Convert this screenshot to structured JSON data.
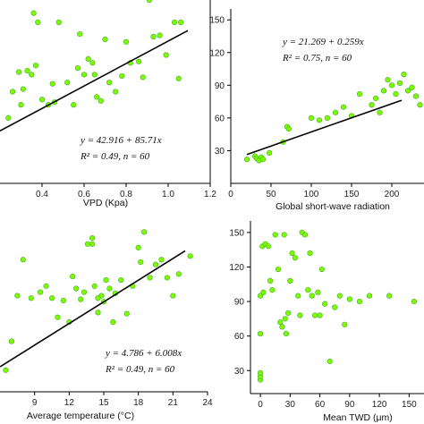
{
  "chart_data": [
    {
      "type": "scatter",
      "xlabel": "VPD (Kpa)",
      "ylabel": "",
      "xlim": [
        0.2,
        1.2
      ],
      "ylim": [
        20,
        160
      ],
      "xticks": [
        "0.4",
        "0.6",
        "0.8",
        "1.0",
        "1.2"
      ],
      "yticks": [],
      "fit": {
        "intercept": 42.916,
        "slope": 85.71
      },
      "equation": "y = 42.916 + 85.71x",
      "r2_text": "R² = 0.49, n = 60",
      "x": [
        0.24,
        0.26,
        0.29,
        0.31,
        0.33,
        0.35,
        0.36,
        0.37,
        0.38,
        0.4,
        0.43,
        0.46,
        0.48,
        0.52,
        0.55,
        0.57,
        0.58,
        0.6,
        0.62,
        0.64,
        0.66,
        0.68,
        0.7,
        0.72,
        0.75,
        0.78,
        0.8,
        0.82,
        0.86,
        0.88,
        0.91,
        0.93,
        0.96,
        0.99,
        1.03,
        1.05,
        1.06,
        0.3,
        0.45,
        0.65
      ],
      "y": [
        70,
        90,
        105,
        92,
        106,
        103,
        150,
        110,
        143,
        84,
        80,
        82,
        143,
        97,
        80,
        108,
        134,
        103,
        115,
        112,
        86,
        83,
        130,
        97,
        90,
        102,
        128,
        112,
        113,
        101,
        160,
        132,
        133,
        118,
        143,
        100,
        143,
        80,
        96,
        103
      ]
    },
    {
      "type": "scatter",
      "xlabel": "Global short-wave radiation",
      "ylabel": "",
      "xlim": [
        0,
        240
      ],
      "ylim": [
        0,
        160
      ],
      "xticks": [
        "0",
        "50",
        "100",
        "150",
        "200"
      ],
      "yticks": [
        "30",
        "60",
        "90",
        "120",
        "150"
      ],
      "fit": {
        "intercept": 21.269,
        "slope": 0.259
      },
      "equation": "y = 21.269 + 0.259x",
      "r2_text": "R² = 0.75, n = 60",
      "x": [
        20,
        30,
        32,
        35,
        38,
        40,
        48,
        65,
        70,
        72,
        100,
        110,
        120,
        130,
        140,
        150,
        160,
        175,
        180,
        190,
        195,
        200,
        205,
        210,
        215,
        220,
        225,
        230,
        235,
        185
      ],
      "y": [
        22,
        25,
        23,
        21,
        24,
        22,
        28,
        38,
        52,
        50,
        60,
        58,
        60,
        65,
        70,
        62,
        82,
        72,
        78,
        85,
        95,
        90,
        82,
        92,
        100,
        85,
        88,
        80,
        72,
        65
      ]
    },
    {
      "type": "scatter",
      "xlabel": "Average temperature (°C)",
      "ylabel": "",
      "xlim": [
        6,
        24
      ],
      "ylim": [
        20,
        160
      ],
      "xticks": [
        "9",
        "12",
        "15",
        "18",
        "21",
        "24"
      ],
      "yticks": [],
      "fit": {
        "intercept": 4.786,
        "slope": 6.008
      },
      "equation": "y = 4.786 + 6.008x",
      "r2_text": "R² = 0.49, n = 60",
      "x": [
        6.5,
        7.0,
        7.5,
        8.0,
        8.7,
        9.5,
        10.0,
        10.5,
        11.0,
        11.5,
        12.0,
        12.3,
        12.6,
        13.0,
        13.3,
        13.6,
        14.0,
        14.2,
        14.5,
        14.8,
        15.0,
        15.2,
        15.5,
        16.0,
        16.5,
        17.0,
        17.5,
        18.0,
        18.5,
        19.0,
        19.5,
        20.0,
        20.5,
        21.0,
        21.5,
        22.5,
        14.0,
        14.5,
        15.8,
        18.2
      ],
      "y": [
        38,
        62,
        100,
        130,
        98,
        103,
        108,
        98,
        82,
        96,
        78,
        116,
        106,
        97,
        103,
        143,
        143,
        108,
        86,
        100,
        95,
        113,
        106,
        102,
        113,
        85,
        108,
        140,
        153,
        115,
        126,
        130,
        115,
        100,
        118,
        133,
        148,
        98,
        78,
        128
      ]
    },
    {
      "type": "scatter",
      "xlabel": "Mean TWD (μm)",
      "ylabel": "",
      "xlim": [
        -10,
        165
      ],
      "ylim": [
        10,
        160
      ],
      "xticks": [
        "0",
        "30",
        "60",
        "90",
        "120",
        "150"
      ],
      "yticks": [
        "30",
        "60",
        "90",
        "120",
        "150"
      ],
      "x": [
        0,
        0,
        0,
        0,
        0,
        2,
        3,
        5,
        8,
        10,
        12,
        15,
        18,
        20,
        22,
        24,
        25,
        26,
        28,
        30,
        32,
        35,
        38,
        40,
        42,
        45,
        48,
        50,
        52,
        55,
        58,
        60,
        62,
        65,
        70,
        75,
        80,
        85,
        90,
        100,
        110,
        130,
        155
      ],
      "y": [
        22,
        25,
        28,
        62,
        95,
        138,
        98,
        140,
        138,
        108,
        100,
        148,
        118,
        72,
        68,
        148,
        75,
        62,
        80,
        108,
        132,
        128,
        95,
        78,
        150,
        148,
        100,
        132,
        95,
        78,
        98,
        78,
        118,
        88,
        38,
        85,
        95,
        70,
        92,
        90,
        95,
        95,
        90
      ]
    }
  ]
}
